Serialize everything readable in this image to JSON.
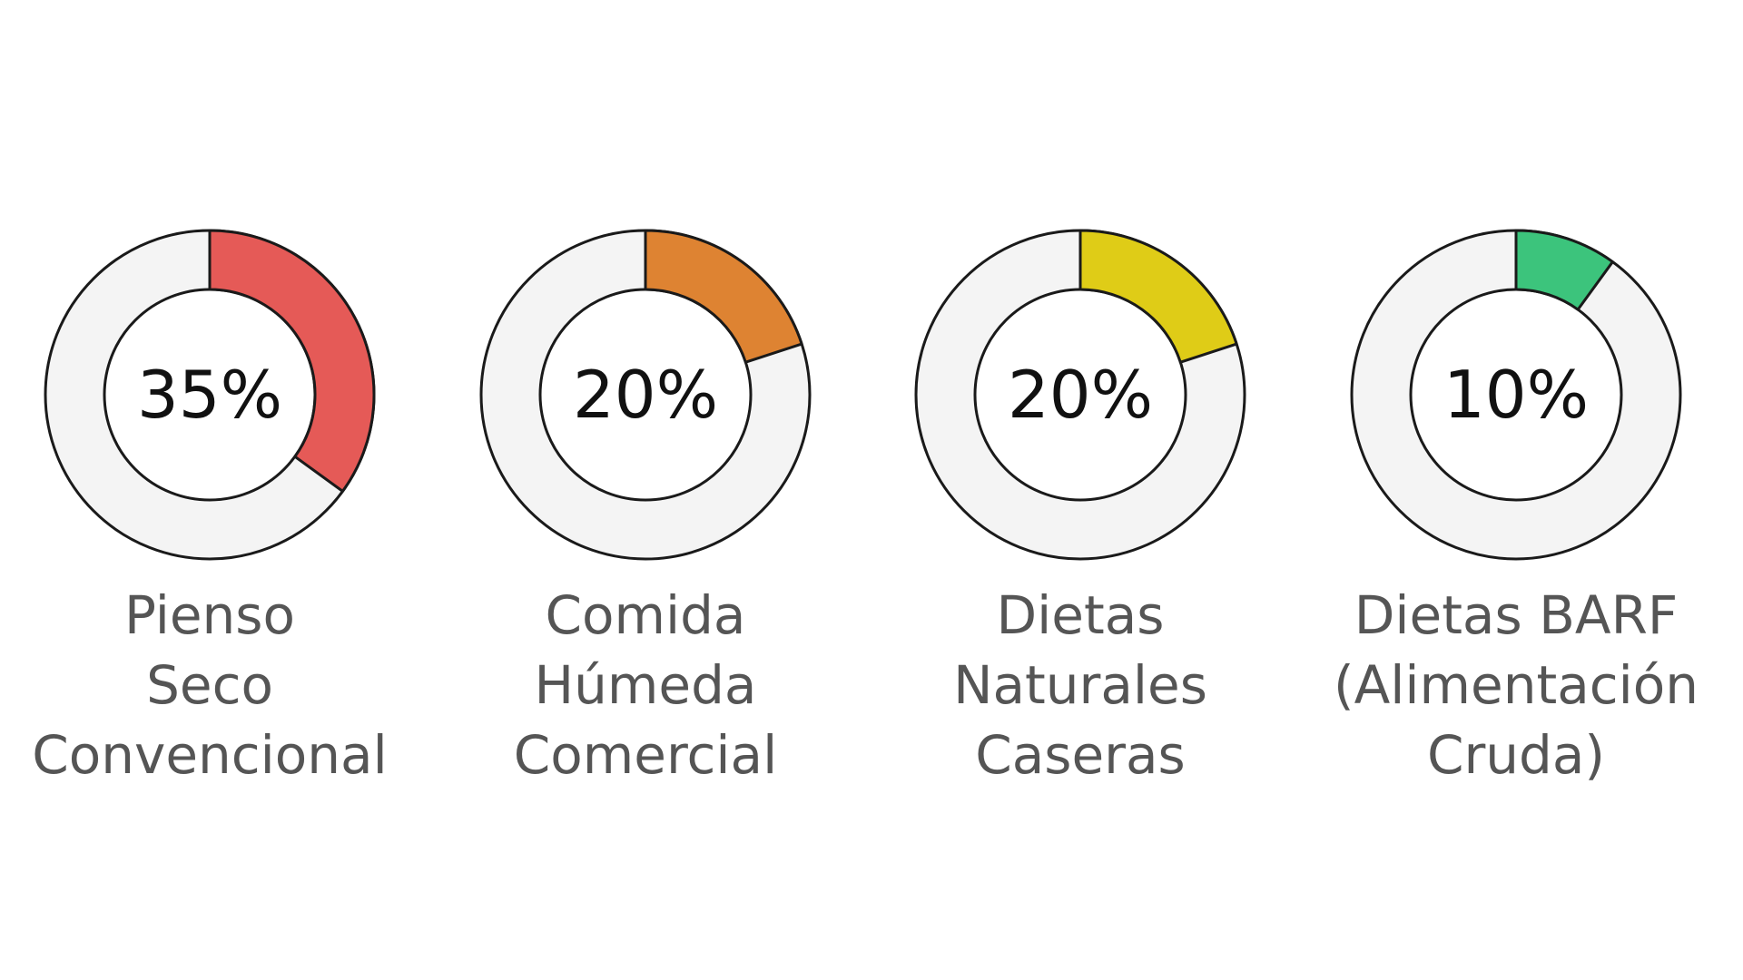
{
  "chart_data": [
    {
      "type": "donut",
      "categories": [
        "Pienso\nSeco\nConvencional"
      ],
      "values": [
        35
      ],
      "value_labels": [
        "35%"
      ],
      "color": "#e55a57"
    },
    {
      "type": "donut",
      "categories": [
        "Comida\nHúmeda\nComercial"
      ],
      "values": [
        20
      ],
      "value_labels": [
        "20%"
      ],
      "color": "#de8332"
    },
    {
      "type": "donut",
      "categories": [
        "Dietas\nNaturales\nCaseras"
      ],
      "values": [
        20
      ],
      "value_labels": [
        "20%"
      ],
      "color": "#dfcc17"
    },
    {
      "type": "donut",
      "categories": [
        "Dietas BARF\n(Alimentación\nCruda)"
      ],
      "values": [
        10
      ],
      "value_labels": [
        "10%"
      ],
      "color": "#3cc47c"
    }
  ]
}
